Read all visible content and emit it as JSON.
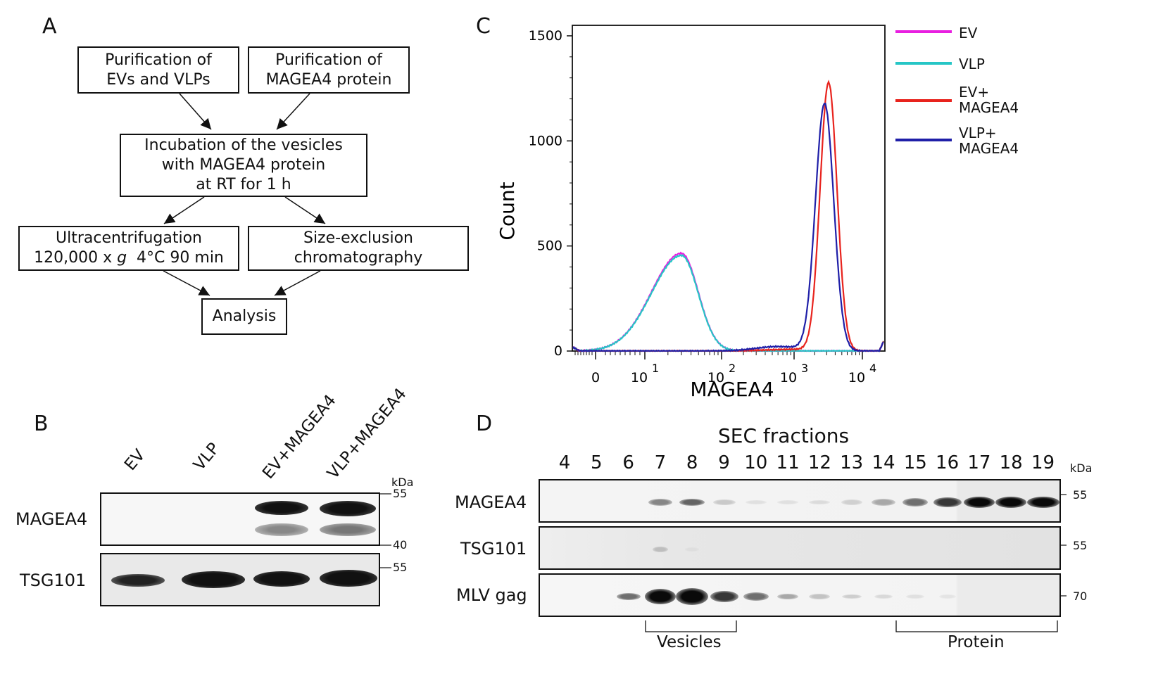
{
  "panels": {
    "a": "A",
    "b": "B",
    "c": "C",
    "d": "D"
  },
  "flowchart": {
    "box1": [
      "Purification of",
      "EVs and VLPs"
    ],
    "box2": [
      "Purification of",
      "MAGEA4 protein"
    ],
    "box3": [
      "Incubation of the vesicles",
      "with MAGEA4 protein",
      "at RT for 1 h"
    ],
    "box4_line1": "Ultracentrifugation",
    "box4_line2_a": "120,000 x ",
    "box4_line2_g": "g",
    "box4_line2_b": "  4°C 90 min",
    "box5": [
      "Size-exclusion",
      "chromatography"
    ],
    "box6": "Analysis"
  },
  "blot_b": {
    "lanes": [
      "EV",
      "VLP",
      "EV+MAGEA4",
      "VLP+MAGEA4"
    ],
    "rows": [
      "MAGEA4",
      "TSG101"
    ],
    "kda_label": "kDa",
    "markers": [
      "55",
      "40",
      "55"
    ]
  },
  "chart_data": {
    "type": "line",
    "xlabel": "MAGEA4",
    "ylabel": "Count",
    "ylim": [
      0,
      1550
    ],
    "yticks": [
      "1500",
      "1000",
      "500",
      "0"
    ],
    "xticks": [
      {
        "label": "0",
        "sup": ""
      },
      {
        "label": "10",
        "sup": "1"
      },
      {
        "label": "10",
        "sup": "2"
      },
      {
        "label": "10",
        "sup": "3"
      },
      {
        "label": "10",
        "sup": "4"
      }
    ],
    "x_scale": "biexponential",
    "series": [
      {
        "name": "EV",
        "color": "#e81fe0",
        "peak_x": 30,
        "peak_y": 465
      },
      {
        "name": "VLP",
        "color": "#26c6c6",
        "peak_x": 30,
        "peak_y": 455
      },
      {
        "name": "EV+\nMAGEA4",
        "color": "#e8231d",
        "peak_x": 3200,
        "peak_y": 1275
      },
      {
        "name": "VLP+\nMAGEA4",
        "color": "#1f1fa8",
        "peak_x": 2800,
        "peak_y": 1175
      }
    ],
    "legend": [
      {
        "lines": [
          "EV"
        ],
        "color": "#e81fe0"
      },
      {
        "lines": [
          "VLP"
        ],
        "color": "#26c6c6"
      },
      {
        "lines": [
          "EV+",
          "MAGEA4"
        ],
        "color": "#e8231d"
      },
      {
        "lines": [
          "VLP+",
          "MAGEA4"
        ],
        "color": "#1f1fa8"
      }
    ]
  },
  "blot_d": {
    "title": "SEC fractions",
    "fractions": [
      "4",
      "5",
      "6",
      "7",
      "8",
      "9",
      "10",
      "11",
      "12",
      "13",
      "14",
      "15",
      "16",
      "17",
      "18",
      "19"
    ],
    "rows": [
      "MAGEA4",
      "TSG101",
      "MLV gag"
    ],
    "kda_label": "kDa",
    "markers": [
      "55",
      "55",
      "70"
    ],
    "groups": [
      "Vesicles",
      "Protein"
    ]
  }
}
